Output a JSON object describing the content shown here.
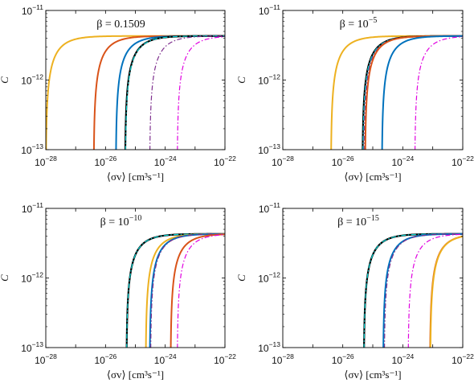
{
  "chart_data": [
    {
      "type": "line",
      "title": "β = 0.1509",
      "title_parts": [
        {
          "t": "β = 0.1509"
        }
      ],
      "xlabel": "⟨σv⟩ [cm³s⁻¹]",
      "ylabel": "C",
      "xscale": "log",
      "yscale": "log",
      "xlim": [
        1e-28,
        1e-22
      ],
      "ylim": [
        1e-13,
        1e-11
      ],
      "xtick_labels": [
        "10^-28",
        "10^-26",
        "10^-24",
        "10^-22"
      ],
      "ytick_labels": [
        "10^-13",
        "10^-12",
        "10^-11"
      ],
      "plateau": 4.3e-12,
      "series": [
        {
          "color": "#EDB120",
          "dash": "solid",
          "width": 2.0,
          "onset": 1e-28
        },
        {
          "color": "#D95319",
          "dash": "solid",
          "width": 2.0,
          "onset": 4e-27
        },
        {
          "color": "#0072BD",
          "dash": "solid",
          "width": 2.0,
          "onset": 2.2e-26
        },
        {
          "color": "#000000",
          "dash": "solid",
          "width": 2.2,
          "onset": 4.5e-26
        },
        {
          "color": "#00D0D0",
          "dash": "dashdot",
          "width": 1.2,
          "onset": 4.6e-26
        },
        {
          "color": "#7E2F8E",
          "dash": "dashdot",
          "width": 1.2,
          "onset": 3e-25
        },
        {
          "color": "#E000E0",
          "dash": "dashdot",
          "width": 1.2,
          "onset": 2.5e-24
        }
      ]
    },
    {
      "type": "line",
      "title": "β = 10^-5",
      "title_parts": [
        {
          "t": "β = 10"
        },
        {
          "t": "−5",
          "sup": true
        }
      ],
      "xlabel": "⟨σv⟩ [cm³s⁻¹]",
      "ylabel": "C",
      "xscale": "log",
      "yscale": "log",
      "xlim": [
        1e-28,
        1e-22
      ],
      "ylim": [
        1e-13,
        1e-11
      ],
      "xtick_labels": [
        "10^-28",
        "10^-26",
        "10^-24",
        "10^-22"
      ],
      "ytick_labels": [
        "10^-13",
        "10^-12",
        "10^-11"
      ],
      "plateau": 4.3e-12,
      "series": [
        {
          "color": "#EDB120",
          "dash": "solid",
          "width": 2.0,
          "onset": 4e-27
        },
        {
          "color": "#000000",
          "dash": "solid",
          "width": 2.2,
          "onset": 4.5e-26
        },
        {
          "color": "#00D0D0",
          "dash": "dashdot",
          "width": 1.2,
          "onset": 4.6e-26
        },
        {
          "color": "#7E2F8E",
          "dash": "dashdot",
          "width": 1.2,
          "onset": 5e-26
        },
        {
          "color": "#D95319",
          "dash": "solid",
          "width": 2.0,
          "onset": 5.5e-26
        },
        {
          "color": "#0072BD",
          "dash": "solid",
          "width": 2.0,
          "onset": 2e-25
        },
        {
          "color": "#E000E0",
          "dash": "dashdot",
          "width": 1.2,
          "onset": 2.5e-24
        }
      ]
    },
    {
      "type": "line",
      "title": "β = 10^-10",
      "title_parts": [
        {
          "t": "β = 10"
        },
        {
          "t": "−10",
          "sup": true
        }
      ],
      "xlabel": "⟨σv⟩ [cm³s⁻¹]",
      "ylabel": "C",
      "xscale": "log",
      "yscale": "log",
      "xlim": [
        1e-28,
        1e-22
      ],
      "ylim": [
        1e-13,
        1e-11
      ],
      "xtick_labels": [
        "10^-28",
        "10^-26",
        "10^-24",
        "10^-22"
      ],
      "ytick_labels": [
        "10^-13",
        "10^-12",
        "10^-11"
      ],
      "plateau": 4.3e-12,
      "series": [
        {
          "color": "#000000",
          "dash": "solid",
          "width": 2.2,
          "onset": 5e-26
        },
        {
          "color": "#00D0D0",
          "dash": "dashdot",
          "width": 1.2,
          "onset": 5e-26
        },
        {
          "color": "#EDB120",
          "dash": "solid",
          "width": 2.0,
          "onset": 2.2e-25
        },
        {
          "color": "#0072BD",
          "dash": "solid",
          "width": 2.0,
          "onset": 3e-25
        },
        {
          "color": "#7E2F8E",
          "dash": "dashdot",
          "width": 1.2,
          "onset": 3.2e-25
        },
        {
          "color": "#D95319",
          "dash": "solid",
          "width": 2.0,
          "onset": 1.5e-24
        },
        {
          "color": "#E000E0",
          "dash": "dashdot",
          "width": 1.2,
          "onset": 2.5e-24
        }
      ]
    },
    {
      "type": "line",
      "title": "β = 10^-15",
      "title_parts": [
        {
          "t": "β = 10"
        },
        {
          "t": "−15",
          "sup": true
        }
      ],
      "xlabel": "⟨σv⟩ [cm³s⁻¹]",
      "ylabel": "C",
      "xscale": "log",
      "yscale": "log",
      "xlim": [
        1e-28,
        1e-22
      ],
      "ylim": [
        1e-13,
        1e-11
      ],
      "xtick_labels": [
        "10^-28",
        "10^-26",
        "10^-24",
        "10^-22"
      ],
      "ytick_labels": [
        "10^-13",
        "10^-12",
        "10^-11"
      ],
      "plateau": 4.3e-12,
      "series": [
        {
          "color": "#000000",
          "dash": "solid",
          "width": 2.2,
          "onset": 5e-26
        },
        {
          "color": "#00D0D0",
          "dash": "dashdot",
          "width": 1.2,
          "onset": 5e-26
        },
        {
          "color": "#0072BD",
          "dash": "solid",
          "width": 2.0,
          "onset": 2.2e-25
        },
        {
          "color": "#7E2F8E",
          "dash": "dashdot",
          "width": 1.2,
          "onset": 2.4e-25
        },
        {
          "color": "#E000E0",
          "dash": "dashdot",
          "width": 1.2,
          "onset": 1.5e-24
        },
        {
          "color": "#D95319",
          "dash": "solid",
          "width": 2.0,
          "onset": 8e-24
        },
        {
          "color": "#EDB120",
          "dash": "solid",
          "width": 2.0,
          "onset": 8.2e-24
        }
      ]
    }
  ]
}
